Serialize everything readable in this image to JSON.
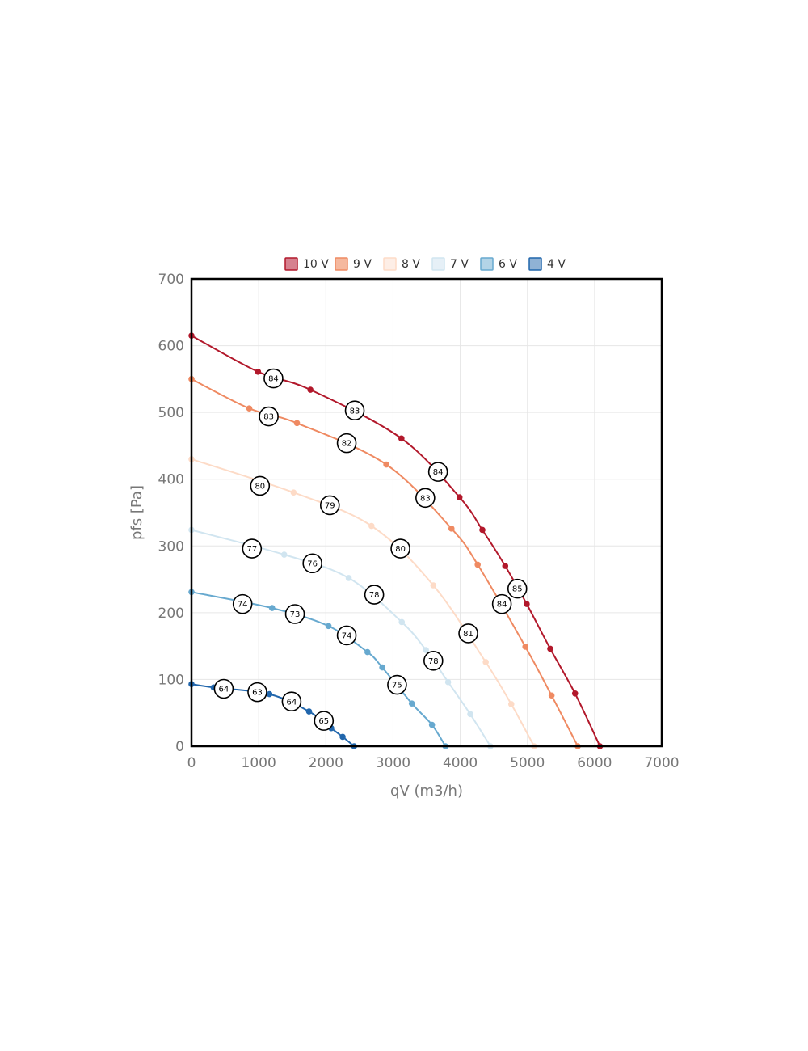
{
  "chart_data": {
    "type": "line",
    "xlabel": "qV (m3/h)",
    "ylabel": "pfs [Pa]",
    "xlim": [
      0,
      7000
    ],
    "ylim": [
      0,
      700
    ],
    "xticks": [
      0,
      1000,
      2000,
      3000,
      4000,
      5000,
      6000,
      7000
    ],
    "yticks": [
      0,
      100,
      200,
      300,
      400,
      500,
      600,
      700
    ],
    "grid": true,
    "legend_position": "top",
    "series": [
      {
        "name": "10 V",
        "color": "#b2182b",
        "fill": "#d6818f",
        "points": [
          [
            0,
            615
          ],
          [
            990,
            561
          ],
          [
            1770,
            534
          ],
          [
            3125,
            461
          ],
          [
            3990,
            373
          ],
          [
            4330,
            324
          ],
          [
            4670,
            270
          ],
          [
            4990,
            213
          ],
          [
            5340,
            146
          ],
          [
            5710,
            79
          ],
          [
            6080,
            0
          ]
        ],
        "efficiency": [
          {
            "x": 1220,
            "y": 551,
            "label": "84"
          },
          {
            "x": 2430,
            "y": 503,
            "label": "83"
          },
          {
            "x": 3670,
            "y": 411,
            "label": "84"
          },
          {
            "x": 4850,
            "y": 236,
            "label": "85"
          }
        ]
      },
      {
        "name": "9 V",
        "color": "#ef8a62",
        "fill": "#f5b89e",
        "points": [
          [
            0,
            550
          ],
          [
            860,
            506
          ],
          [
            1570,
            484
          ],
          [
            2900,
            422
          ],
          [
            3870,
            326
          ],
          [
            4260,
            272
          ],
          [
            4970,
            149
          ],
          [
            5360,
            76
          ],
          [
            5750,
            0
          ]
        ],
        "efficiency": [
          {
            "x": 1150,
            "y": 494,
            "label": "83"
          },
          {
            "x": 2310,
            "y": 454,
            "label": "82"
          },
          {
            "x": 3480,
            "y": 372,
            "label": "83"
          },
          {
            "x": 4620,
            "y": 213,
            "label": "84"
          }
        ]
      },
      {
        "name": "8 V",
        "color": "#fddbc7",
        "fill": "#fdeee6",
        "points": [
          [
            0,
            430
          ],
          [
            1520,
            380
          ],
          [
            2680,
            330
          ],
          [
            3600,
            241
          ],
          [
            4380,
            126
          ],
          [
            4760,
            63
          ],
          [
            5100,
            0
          ]
        ],
        "efficiency": [
          {
            "x": 1020,
            "y": 390,
            "label": "80"
          },
          {
            "x": 2060,
            "y": 361,
            "label": "79"
          },
          {
            "x": 3110,
            "y": 296,
            "label": "80"
          },
          {
            "x": 4120,
            "y": 169,
            "label": "81"
          }
        ]
      },
      {
        "name": "7 V",
        "color": "#d1e5f0",
        "fill": "#e6f0f7",
        "points": [
          [
            0,
            324
          ],
          [
            1380,
            287
          ],
          [
            2340,
            252
          ],
          [
            3130,
            186
          ],
          [
            3490,
            144
          ],
          [
            3820,
            96
          ],
          [
            4150,
            48
          ],
          [
            4450,
            0
          ]
        ],
        "efficiency": [
          {
            "x": 900,
            "y": 296,
            "label": "77"
          },
          {
            "x": 1800,
            "y": 274,
            "label": "76"
          },
          {
            "x": 2720,
            "y": 227,
            "label": "78"
          },
          {
            "x": 3600,
            "y": 128,
            "label": "78"
          }
        ]
      },
      {
        "name": "6 V",
        "color": "#67a9cf",
        "fill": "#b3d4e7",
        "points": [
          [
            0,
            231
          ],
          [
            1200,
            207
          ],
          [
            2040,
            180
          ],
          [
            2620,
            141
          ],
          [
            2840,
            118
          ],
          [
            3280,
            64
          ],
          [
            3580,
            32
          ],
          [
            3780,
            0
          ]
        ],
        "efficiency": [
          {
            "x": 760,
            "y": 213,
            "label": "74"
          },
          {
            "x": 1540,
            "y": 198,
            "label": "73"
          },
          {
            "x": 2310,
            "y": 166,
            "label": "74"
          },
          {
            "x": 3060,
            "y": 92,
            "label": "75"
          }
        ]
      },
      {
        "name": "4 V",
        "color": "#2166ac",
        "fill": "#90b2d5",
        "points": [
          [
            0,
            93
          ],
          [
            330,
            88
          ],
          [
            1160,
            78
          ],
          [
            1750,
            52
          ],
          [
            2080,
            27
          ],
          [
            2250,
            14
          ],
          [
            2420,
            0
          ]
        ],
        "efficiency": [
          {
            "x": 480,
            "y": 86,
            "label": "64"
          },
          {
            "x": 980,
            "y": 81,
            "label": "63"
          },
          {
            "x": 1490,
            "y": 67,
            "label": "64"
          },
          {
            "x": 1970,
            "y": 38,
            "label": "65"
          }
        ]
      }
    ]
  }
}
